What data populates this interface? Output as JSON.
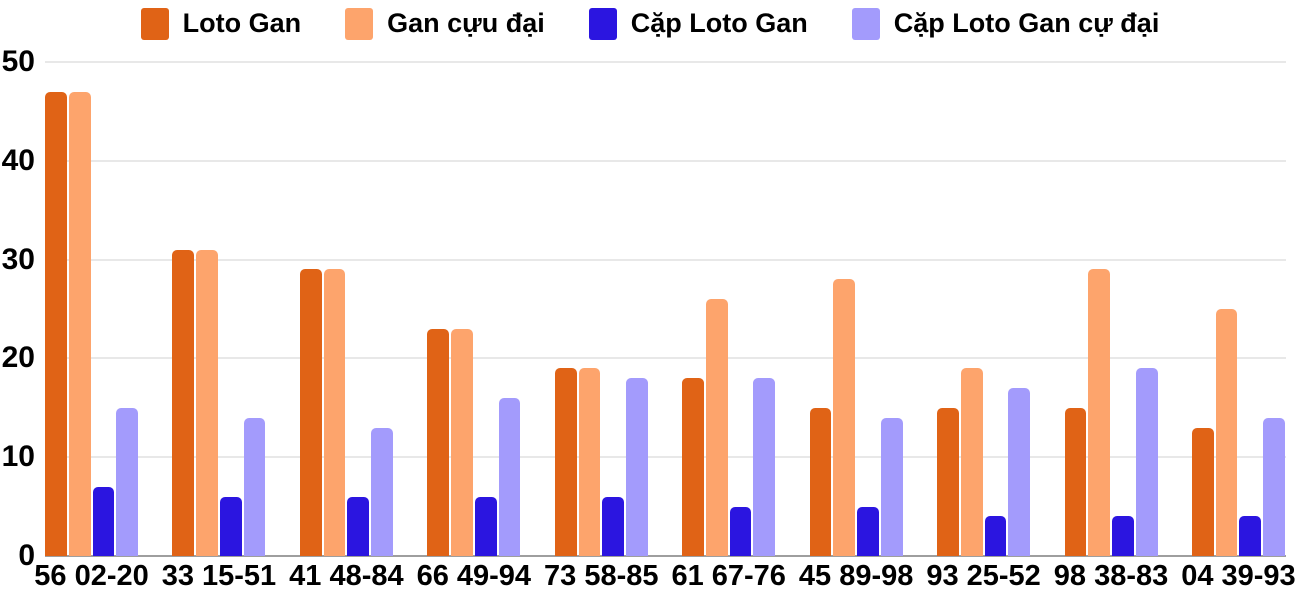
{
  "chart_data": {
    "type": "bar",
    "title": "",
    "categories": [
      "56 02-20",
      "33 15-51",
      "41 48-84",
      "66 49-94",
      "73 58-85",
      "61 67-76",
      "45 89-98",
      "93 25-52",
      "98 38-83",
      "04 39-93"
    ],
    "series": [
      {
        "name": "Loto Gan",
        "color": "#e06316",
        "values": [
          47,
          31,
          29,
          23,
          19,
          18,
          15,
          15,
          15,
          13
        ]
      },
      {
        "name": "Gan cựu đại",
        "color": "#fda46c",
        "values": [
          47,
          31,
          29,
          23,
          19,
          26,
          28,
          19,
          29,
          25
        ]
      },
      {
        "name": "Cặp Loto Gan",
        "color": "#2b15e0",
        "values": [
          7,
          6,
          6,
          6,
          6,
          5,
          5,
          4,
          4,
          4
        ]
      },
      {
        "name": "Cặp Loto Gan cự đại",
        "color": "#a39bfc",
        "values": [
          15,
          14,
          13,
          16,
          18,
          18,
          14,
          17,
          19,
          14
        ]
      }
    ],
    "xlabel": "",
    "ylabel": "",
    "ylim": [
      0,
      50
    ],
    "yticks": [
      0,
      10,
      20,
      30,
      40,
      50
    ],
    "grid": true,
    "legend_position": "top",
    "grid_color": "#e8e8e8",
    "baseline_color": "#9e9e9e",
    "text_color": "#000000",
    "background_color": "#ffffff"
  }
}
